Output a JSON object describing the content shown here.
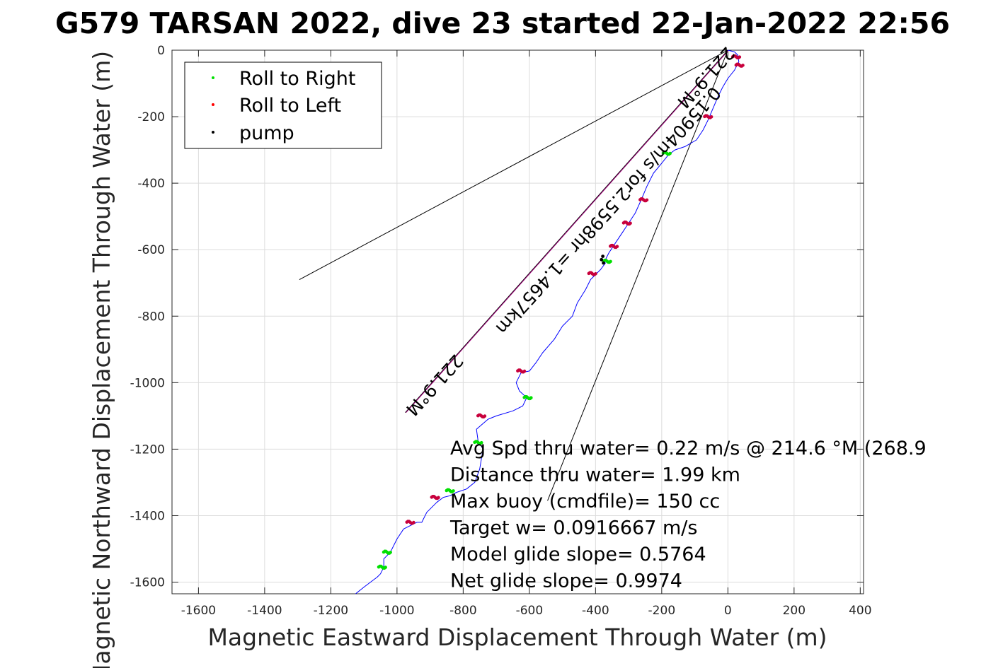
{
  "colors": {
    "track": "#0000ff",
    "roll_right": "#00e000",
    "roll_left": "#ff0000",
    "pump": "#000000",
    "mixed_roll": "#c8003c",
    "glide_line": "#a0007a",
    "grid": "#dcdcdc",
    "axis": "#262626"
  },
  "chart_data": {
    "type": "scatter",
    "title": "G579 TARSAN 2022, dive 23 started 22-Jan-2022 22:56",
    "xlabel": "Magnetic Eastward Displacement Through Water (m)",
    "ylabel": "Magnetic Northward Displacement Through Water (m)",
    "xlim": [
      -1680,
      410
    ],
    "ylim": [
      -1635,
      0
    ],
    "x_ticks": [
      -1600,
      -1400,
      -1200,
      -1000,
      -800,
      -600,
      -400,
      -200,
      0,
      200,
      400
    ],
    "y_ticks": [
      0,
      -200,
      -400,
      -600,
      -800,
      -1000,
      -1200,
      -1400,
      -1600
    ],
    "grid": true,
    "legend_position": "top-left",
    "legend": [
      {
        "label": "Roll to Right",
        "color": "#00e000"
      },
      {
        "label": "Roll to Left",
        "color": "#ff0000"
      },
      {
        "label": "pump",
        "color": "#000000"
      }
    ],
    "track": {
      "x": [
        0,
        20,
        30,
        33,
        20,
        0,
        -15,
        -30,
        -45,
        -60,
        -75,
        -95,
        -130,
        -160,
        -180,
        -200,
        -225,
        -245,
        -262,
        -280,
        -300,
        -320,
        -340,
        -360,
        -375,
        -378,
        -370,
        -385,
        -395,
        -400,
        -415,
        -430,
        -455,
        -470,
        -500,
        -525,
        -560,
        -580,
        -600,
        -625,
        -640,
        -630,
        -608,
        -620,
        -650,
        -700,
        -725,
        -760,
        -755,
        -740,
        -750,
        -765,
        -790,
        -820,
        -840,
        -860,
        -880,
        -910,
        -925,
        -940,
        -980,
        -1000,
        -1020,
        -1040,
        -1040,
        -1050,
        -1060,
        -1080,
        -1100,
        -1125
      ],
      "y": [
        0,
        -5,
        -15,
        -35,
        -60,
        -85,
        -110,
        -140,
        -175,
        -210,
        -240,
        -270,
        -290,
        -300,
        -315,
        -340,
        -370,
        -410,
        -450,
        -490,
        -520,
        -550,
        -580,
        -610,
        -640,
        -635,
        -640,
        -660,
        -670,
        -675,
        -690,
        -720,
        -760,
        -800,
        -830,
        -870,
        -910,
        -940,
        -965,
        -970,
        -1000,
        -1025,
        -1045,
        -1070,
        -1085,
        -1100,
        -1110,
        -1140,
        -1175,
        -1200,
        -1260,
        -1300,
        -1320,
        -1330,
        -1340,
        -1345,
        -1360,
        -1390,
        -1420,
        -1420,
        -1440,
        -1470,
        -1510,
        -1530,
        -1555,
        -1575,
        -1585,
        -1600,
        -1615,
        -1635
      ]
    },
    "roll_markers": [
      {
        "x": 25,
        "y": -20,
        "kind": "mixed"
      },
      {
        "x": 35,
        "y": -45,
        "kind": "mixed"
      },
      {
        "x": -60,
        "y": -200,
        "kind": "mixed"
      },
      {
        "x": -185,
        "y": -310,
        "kind": "right"
      },
      {
        "x": -255,
        "y": -450,
        "kind": "mixed"
      },
      {
        "x": -305,
        "y": -520,
        "kind": "mixed"
      },
      {
        "x": -345,
        "y": -590,
        "kind": "mixed"
      },
      {
        "x": -365,
        "y": -635,
        "kind": "right"
      },
      {
        "x": -410,
        "y": -672,
        "kind": "mixed"
      },
      {
        "x": -625,
        "y": -965,
        "kind": "mixed"
      },
      {
        "x": -605,
        "y": -1045,
        "kind": "right"
      },
      {
        "x": -745,
        "y": -1100,
        "kind": "mixed"
      },
      {
        "x": -755,
        "y": -1180,
        "kind": "right"
      },
      {
        "x": -840,
        "y": -1325,
        "kind": "right"
      },
      {
        "x": -885,
        "y": -1345,
        "kind": "mixed"
      },
      {
        "x": -960,
        "y": -1420,
        "kind": "mixed"
      },
      {
        "x": -1030,
        "y": -1510,
        "kind": "right"
      },
      {
        "x": -1045,
        "y": -1555,
        "kind": "right"
      }
    ],
    "pump_markers": [
      {
        "x": -378,
        "y": -620
      },
      {
        "x": -382,
        "y": -630
      },
      {
        "x": -376,
        "y": -640
      }
    ],
    "reference_lines": [
      {
        "from": [
          0,
          0
        ],
        "to": [
          -1295,
          -690
        ]
      },
      {
        "from": [
          0,
          0
        ],
        "to": [
          -545,
          -1355
        ]
      },
      {
        "from": [
          0,
          0
        ],
        "to": [
          -975,
          -1090
        ]
      }
    ],
    "glide_line": {
      "from": [
        0,
        0
      ],
      "to": [
        -975,
        -1090
      ]
    },
    "diagonal_labels": [
      {
        "text": "221.9°M",
        "x": -80,
        "y": -70,
        "angle": -48
      },
      {
        "text": "0.15904m/s for2.5598hr =1.4657km",
        "x": -375,
        "y": -470,
        "angle": -48
      },
      {
        "text": "221.9°M",
        "x": -900,
        "y": -995,
        "angle": -48
      }
    ],
    "annotations": [
      "Avg Spd thru water=  0.22 m/s @ 214.6 °M (268.9",
      "Distance thru water=  1.99 km",
      "Max buoy (cmdfile)= 150 cc",
      "Target w= 0.0916667 m/s",
      "Model glide slope= 0.5764",
      "Net glide slope= 0.9974"
    ]
  }
}
